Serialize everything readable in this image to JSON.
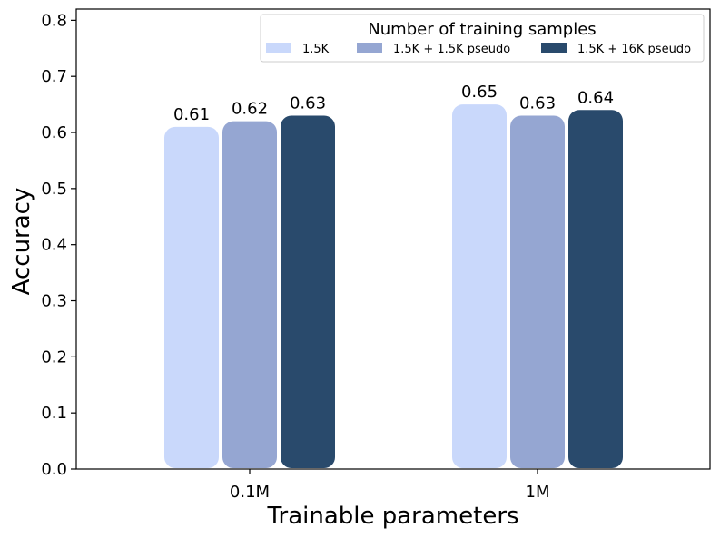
{
  "chart_data": {
    "type": "bar",
    "title": "",
    "xlabel": "Trainable parameters",
    "ylabel": "Accuracy",
    "ylim": [
      0,
      0.82
    ],
    "yticks": [
      "0.0",
      "0.1",
      "0.2",
      "0.3",
      "0.4",
      "0.5",
      "0.6",
      "0.7",
      "0.8"
    ],
    "categories": [
      "0.1M",
      "1M"
    ],
    "series": [
      {
        "name": "1.5K",
        "color": "#c9d8fb",
        "values": [
          0.61,
          0.65
        ]
      },
      {
        "name": "1.5K + 1.5K pseudo",
        "color": "#95a6d2",
        "values": [
          0.62,
          0.63
        ]
      },
      {
        "name": "1.5K + 16K pseudo",
        "color": "#294a6c",
        "values": [
          0.63,
          0.64
        ]
      }
    ],
    "legend": {
      "title": "Number of training samples",
      "placement": "top-right"
    }
  }
}
